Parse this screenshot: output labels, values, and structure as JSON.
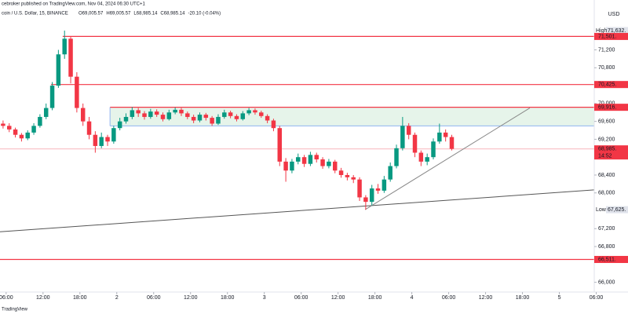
{
  "chart_data": {
    "type": "candlestick",
    "publisher": "cebroker published on TradingView.com, Nov 04, 2024 06:30 UTC+1",
    "symbol": "coin / U.S. Dollar, 15, BINANCE",
    "ohlc_legend": [
      "O69,005.57",
      "H69,005.57",
      "L68,985.14",
      "C68,985.14",
      "-20.10 (-0.04%)"
    ],
    "currency": "USD",
    "brand": "TradingView",
    "up_color": "#089981",
    "down_color": "#f23645",
    "x": [
      0.5,
      1.5,
      2.5,
      3.5,
      4.5,
      5.5,
      6.5,
      7.5,
      8.5,
      9.5,
      10.5,
      11.5,
      12.5,
      13.5,
      14.5,
      15.5,
      16.5,
      17.5,
      18.5,
      19.5,
      20.5,
      21.5,
      22.5,
      23.5,
      24.5,
      25.5,
      26.5,
      27.5,
      28.5,
      29.5,
      30.5,
      31.5,
      32.5,
      33.5,
      34.5,
      35.5,
      36.5,
      37.5,
      38.5,
      39.5,
      40.5,
      41.5,
      42.5,
      43.5,
      44.5,
      45.5,
      46.5,
      47.5,
      48.5,
      49.5,
      50.5,
      51.5,
      52.5,
      53.5,
      54.5,
      55.5,
      56.5,
      57.5,
      58.5,
      59.5,
      60.5,
      61.5,
      62.5,
      63.5,
      64.5,
      65.5,
      66.5,
      67.5,
      68.5,
      69.5,
      70.5,
      71.5,
      72.5,
      73.5
    ],
    "open": [
      69550,
      69500,
      69420,
      69300,
      69220,
      69350,
      69500,
      69700,
      69900,
      70400,
      71100,
      71450,
      70600,
      69900,
      69600,
      69300,
      69050,
      69250,
      69150,
      69450,
      69600,
      69700,
      69850,
      69780,
      69700,
      69820,
      69750,
      69650,
      69800,
      69860,
      69780,
      69700,
      69620,
      69750,
      69680,
      69550,
      69700,
      69800,
      69720,
      69650,
      69780,
      69850,
      69800,
      69720,
      69620,
      69450,
      68700,
      68500,
      68700,
      68800,
      68650,
      68850,
      68750,
      68600,
      68700,
      68500,
      68400,
      68350,
      68300,
      67900,
      67800,
      68100,
      68050,
      68300,
      68600,
      69000,
      69500,
      69300,
      68900,
      68700,
      68800,
      69150,
      69350,
      69250
    ],
    "high": [
      69620,
      69560,
      69460,
      69340,
      69400,
      69560,
      69760,
      70000,
      70480,
      71200,
      71632,
      71500,
      70700,
      70000,
      69700,
      69380,
      69350,
      69300,
      69500,
      69680,
      69780,
      69920,
      69900,
      69830,
      69880,
      69870,
      69800,
      69860,
      69910,
      69900,
      69820,
      69750,
      69800,
      69790,
      69720,
      69760,
      69860,
      69840,
      69760,
      69830,
      69900,
      69890,
      69840,
      69760,
      69660,
      69500,
      68780,
      68760,
      68880,
      68850,
      68920,
      68900,
      68800,
      68760,
      68740,
      68560,
      68450,
      68400,
      68350,
      67950,
      68180,
      68200,
      68380,
      68680,
      69080,
      69700,
      69560,
      69350,
      68950,
      68880,
      69220,
      69550,
      69420,
      69300
    ],
    "low": [
      69440,
      69360,
      69240,
      69150,
      69180,
      69300,
      69460,
      69650,
      69850,
      70350,
      71000,
      70450,
      69800,
      69500,
      69200,
      68900,
      69000,
      69050,
      69100,
      69400,
      69550,
      69650,
      69700,
      69640,
      69660,
      69700,
      69600,
      69620,
      69760,
      69720,
      69650,
      69560,
      69580,
      69620,
      69500,
      69520,
      69660,
      69670,
      69600,
      69620,
      69740,
      69750,
      69680,
      69560,
      69380,
      68600,
      68250,
      68440,
      68640,
      68580,
      68600,
      68680,
      68540,
      68550,
      68440,
      68340,
      68280,
      68220,
      67820,
      67625,
      67720,
      67980,
      68000,
      68250,
      68550,
      68950,
      69200,
      68800,
      68600,
      68620,
      68750,
      69100,
      69150,
      68950
    ],
    "close": [
      69500,
      69420,
      69300,
      69220,
      69350,
      69500,
      69700,
      69900,
      70400,
      71100,
      71450,
      70600,
      69900,
      69600,
      69300,
      69050,
      69250,
      69150,
      69450,
      69600,
      69700,
      69850,
      69780,
      69700,
      69820,
      69750,
      69650,
      69800,
      69860,
      69780,
      69700,
      69620,
      69750,
      69680,
      69550,
      69700,
      69800,
      69720,
      69650,
      69780,
      69850,
      69800,
      69720,
      69620,
      69450,
      68700,
      68500,
      68700,
      68800,
      68650,
      68850,
      68750,
      68600,
      68700,
      68500,
      68400,
      68350,
      68300,
      67900,
      67800,
      68100,
      68050,
      68300,
      68600,
      69000,
      69500,
      69300,
      68900,
      68700,
      68800,
      69150,
      69350,
      69250,
      68985
    ],
    "xlim": [
      0,
      97
    ],
    "xticks": [
      {
        "value": 1,
        "label": "06:00"
      },
      {
        "value": 7,
        "label": "12:00"
      },
      {
        "value": 13,
        "label": "18:00"
      },
      {
        "value": 19,
        "label": "2"
      },
      {
        "value": 25,
        "label": "06:00"
      },
      {
        "value": 31,
        "label": "12:00"
      },
      {
        "value": 37,
        "label": "18:00"
      },
      {
        "value": 43,
        "label": "3"
      },
      {
        "value": 49,
        "label": "06:00"
      },
      {
        "value": 55,
        "label": "12:00"
      },
      {
        "value": 61,
        "label": "18:00"
      },
      {
        "value": 67,
        "label": "4"
      },
      {
        "value": 73,
        "label": "06:00"
      },
      {
        "value": 79,
        "label": "12:00"
      },
      {
        "value": 85,
        "label": "18:00"
      },
      {
        "value": 91,
        "label": "5"
      },
      {
        "value": 97,
        "label": "06:00"
      }
    ],
    "ylim": [
      65800,
      72000
    ],
    "yticks": [
      {
        "value": 71200,
        "label": "71,200"
      },
      {
        "value": 70800,
        "label": "70,800"
      },
      {
        "value": 70000,
        "label": "70,000"
      },
      {
        "value": 69600,
        "label": "69,600"
      },
      {
        "value": 69200,
        "label": "69,200"
      },
      {
        "value": 68400,
        "label": "68,400"
      },
      {
        "value": 68000,
        "label": "68,000"
      },
      {
        "value": 67200,
        "label": "67,200"
      },
      {
        "value": 66800,
        "label": "66,800"
      },
      {
        "value": 66000,
        "label": "66,000"
      }
    ],
    "zone": {
      "top": 69916,
      "bottom": 69500,
      "start": 17.9,
      "fill": "#e6f4ea",
      "top_color": "#f23645",
      "bottom_color": "#90b4f0"
    },
    "levels": [
      {
        "value": 71501,
        "start": 10.2,
        "color": "#f23645"
      },
      {
        "value": 70425,
        "start": 8.3,
        "color": "#f23645"
      },
      {
        "value": 66511,
        "start": 0,
        "color": "#f23645"
      },
      {
        "value": 68985,
        "start": 0,
        "color": "#f9c5c9"
      }
    ],
    "trendlines": [
      {
        "x": [
          0,
          98
        ],
        "y": [
          67130,
          68080
        ],
        "color": "#555555"
      },
      {
        "x": [
          59.4,
          86.2
        ],
        "y": [
          67625,
          69900
        ],
        "color": "#888888"
      }
    ],
    "price_tags": [
      {
        "value": 71632,
        "name": "High",
        "label": "71,632.",
        "color": "#e0e3eb"
      },
      {
        "value": 71501,
        "label": "71,501.",
        "color": "#f23645"
      },
      {
        "value": 70425,
        "label": "70,425.",
        "color": "#f23645"
      },
      {
        "value": 69916,
        "label": "69,916.",
        "color": "#f23645"
      },
      {
        "value": 68985,
        "label": "68,985.",
        "sub": "14:52",
        "color": "#f23645"
      },
      {
        "value": 67625,
        "name": "Low",
        "label": "67,625.",
        "color": "#e0e3eb"
      },
      {
        "value": 66511,
        "label": "66,511.",
        "color": "#f23645"
      }
    ]
  }
}
